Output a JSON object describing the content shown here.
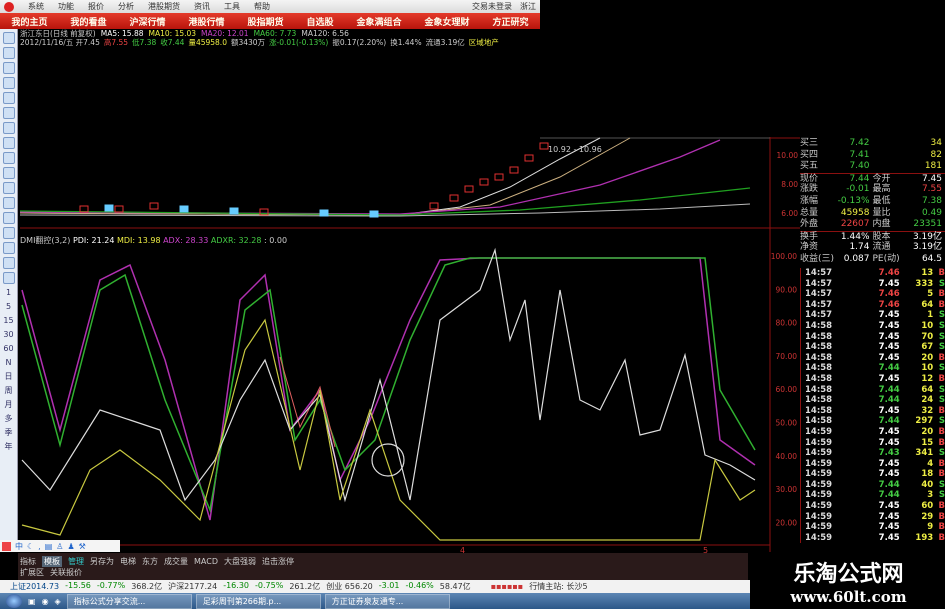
{
  "menu": {
    "items": [
      "系统",
      "功能",
      "报价",
      "分析",
      "港股期货",
      "资讯",
      "工具",
      "帮助"
    ],
    "login": "交易未登录",
    "extra": "浙江"
  },
  "nav": [
    "我的主页",
    "我的看盘",
    "沪深行情",
    "港股行情",
    "股指期货",
    "自选股",
    "金象满组合",
    "金象女理财",
    "方正研究"
  ],
  "info": {
    "line1": [
      {
        "t": "浙江东日(日线 前复权)",
        "c": "#ccc"
      },
      {
        "t": "MA5: 15.88",
        "c": "#fff"
      },
      {
        "t": "MA10: 15.03",
        "c": "#ee4"
      },
      {
        "t": "MA20: 12.01",
        "c": "#c4c"
      },
      {
        "t": "MA60: 7.73",
        "c": "#4c4"
      },
      {
        "t": "MA120: 6.56",
        "c": "#ccc"
      }
    ],
    "line2": [
      {
        "t": "2012/11/16/五 开7.45",
        "c": "#ccc"
      },
      {
        "t": "高7.55",
        "c": "#e44"
      },
      {
        "t": "低7.38",
        "c": "#4c4"
      },
      {
        "t": "收7.44",
        "c": "#4c4"
      },
      {
        "t": "量45958.0",
        "c": "#ee4"
      },
      {
        "t": "额3430万",
        "c": "#ccc"
      },
      {
        "t": "涨-0.01(-0.13%)",
        "c": "#4c4"
      },
      {
        "t": "振0.17(2.20%)",
        "c": "#ccc"
      },
      {
        "t": "换1.44%",
        "c": "#ccc"
      },
      {
        "t": "流通3.19亿",
        "c": "#ccc"
      },
      {
        "t": "区域地产",
        "c": "#ee4"
      }
    ]
  },
  "main_chart": {
    "price_tag": "10.92 - 10.96",
    "axis": [
      "10.00",
      "8.00",
      "6.00"
    ]
  },
  "indicator": {
    "name": "DMI翻控(3,2)",
    "pdi": "PDI: 21.24",
    "mdi": "MDI: 13.98",
    "adx": "ADX: 28.33",
    "adxr": "ADXR: 32.28",
    "extra": ": 0.00",
    "axis": [
      "100.00",
      "90.00",
      "80.00",
      "70.00",
      "60.00",
      "50.00",
      "40.00",
      "30.00",
      "20.00"
    ],
    "x_ticks": [
      "4",
      "5"
    ]
  },
  "quote": [
    [
      "买三",
      "7.42",
      "",
      "34"
    ],
    [
      "买四",
      "7.41",
      "",
      "82"
    ],
    [
      "买五",
      "7.40",
      "",
      "181"
    ],
    [
      "现价",
      "7.44",
      "今开",
      "7.45"
    ],
    [
      "涨跌",
      "-0.01",
      "最高",
      "7.55"
    ],
    [
      "涨幅",
      "-0.13%",
      "最低",
      "7.38"
    ],
    [
      "总量",
      "45958",
      "量比",
      "0.49"
    ],
    [
      "外盘",
      "22607",
      "内盘",
      "23351"
    ],
    [
      "换手",
      "1.44%",
      "股本",
      "3.19亿"
    ],
    [
      "净资",
      "1.74",
      "流通",
      "3.19亿"
    ],
    [
      "收益(三)",
      "0.087",
      "PE(动)",
      "64.5"
    ]
  ],
  "trades": [
    [
      "14:57",
      "7.46",
      "13",
      "B"
    ],
    [
      "14:57",
      "7.45",
      "333",
      "S"
    ],
    [
      "14:57",
      "7.46",
      "5",
      "B"
    ],
    [
      "14:57",
      "7.46",
      "64",
      "B"
    ],
    [
      "14:57",
      "7.45",
      "1",
      "S"
    ],
    [
      "14:58",
      "7.45",
      "10",
      "S"
    ],
    [
      "14:58",
      "7.45",
      "70",
      "S"
    ],
    [
      "14:58",
      "7.45",
      "67",
      "S"
    ],
    [
      "14:58",
      "7.45",
      "20",
      "B"
    ],
    [
      "14:58",
      "7.44",
      "10",
      "S"
    ],
    [
      "14:58",
      "7.45",
      "12",
      "B"
    ],
    [
      "14:58",
      "7.44",
      "64",
      "S"
    ],
    [
      "14:58",
      "7.44",
      "24",
      "S"
    ],
    [
      "14:58",
      "7.45",
      "32",
      "B"
    ],
    [
      "14:58",
      "7.44",
      "297",
      "S"
    ],
    [
      "14:59",
      "7.45",
      "20",
      "B"
    ],
    [
      "14:59",
      "7.45",
      "15",
      "B"
    ],
    [
      "14:59",
      "7.43",
      "341",
      "S"
    ],
    [
      "14:59",
      "7.45",
      "4",
      "B"
    ],
    [
      "14:59",
      "7.45",
      "18",
      "B"
    ],
    [
      "14:59",
      "7.44",
      "40",
      "S"
    ],
    [
      "14:59",
      "7.44",
      "3",
      "S"
    ],
    [
      "14:59",
      "7.45",
      "60",
      "B"
    ],
    [
      "14:59",
      "7.45",
      "29",
      "B"
    ],
    [
      "14:59",
      "7.45",
      "9",
      "B"
    ],
    [
      "14:59",
      "7.45",
      "193",
      "B"
    ]
  ],
  "sidebar_periods": [
    "1",
    "5",
    "15",
    "30",
    "60",
    "N",
    "日",
    "周",
    "月",
    "多",
    "季",
    "年"
  ],
  "bottom_tabs": [
    "指标",
    "模板",
    "管理",
    "另存为",
    "电梯",
    "东方",
    "成交量",
    "MACD",
    "大盘强弱",
    "追击涨停"
  ],
  "bottom_tabs2": [
    "扩展区",
    "关联报价"
  ],
  "toolbar": {
    "lang": "中"
  },
  "status": {
    "items": [
      {
        "t": "上证2014.73",
        "c": "#048"
      },
      {
        "t": "-15.56",
        "c": "#080"
      },
      {
        "t": "-0.77%",
        "c": "#080"
      },
      {
        "t": "368.2亿",
        "c": "#333"
      },
      {
        "t": "沪深2177.24",
        "c": "#333"
      },
      {
        "t": "-16.30",
        "c": "#080"
      },
      {
        "t": "-0.75%",
        "c": "#080"
      },
      {
        "t": "261.2亿",
        "c": "#333"
      },
      {
        "t": "创业 656.20",
        "c": "#333"
      },
      {
        "t": "-3.01",
        "c": "#080"
      },
      {
        "t": "-0.46%",
        "c": "#080"
      },
      {
        "t": "58.47亿",
        "c": "#333"
      }
    ],
    "server": "行情主站: 长沙5"
  },
  "taskbar": [
    "指标公式分享交流...",
    "足彩周刊第266期.p...",
    "方正证券泉友通专..."
  ],
  "watermark": {
    "title": "乐淘公式网",
    "url": "www.60lt.com"
  },
  "colors": {
    "up": "#e03030",
    "down": "#30c030",
    "grid": "#8b1010",
    "accent": "#c8140c"
  }
}
